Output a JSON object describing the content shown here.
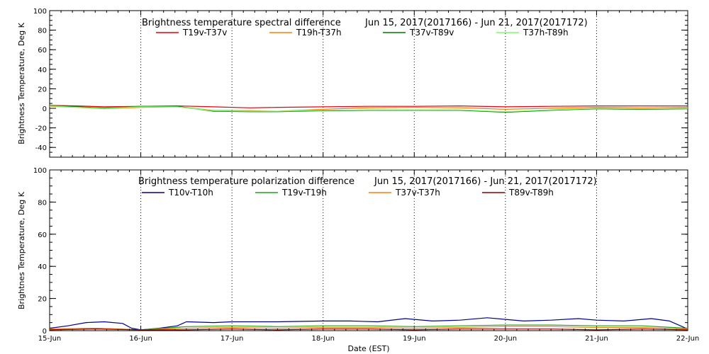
{
  "chart_data": [
    {
      "type": "line",
      "title": "Brightness temperature spectral difference",
      "date_range": "Jun 15, 2017(2017166) - Jun 21, 2017(2017172)",
      "ylabel": "Brightness Temperature, Deg K",
      "xlabel": "",
      "xlim": [
        0,
        7
      ],
      "ylim": [
        -50,
        100
      ],
      "yticks": [
        -40,
        -20,
        0,
        20,
        40,
        60,
        80,
        100
      ],
      "xtick_labels": [],
      "grid": "vertical dotted at day boundaries",
      "series": [
        {
          "name": "T19v-T37v",
          "color": "#e8000b",
          "x": [
            0,
            0.3,
            0.6,
            1.0,
            1.4,
            1.8,
            2.2,
            2.5,
            3.0,
            3.5,
            4.0,
            4.5,
            5.0,
            5.5,
            6.0,
            6.5,
            7.0
          ],
          "values": [
            3,
            2.5,
            1.5,
            2,
            2.5,
            1.5,
            0.5,
            1,
            1.5,
            2,
            2,
            2.5,
            1.5,
            2,
            2.5,
            2.5,
            2.5
          ]
        },
        {
          "name": "T19h-T37h",
          "color": "#ff7f0e",
          "x": [
            0,
            0.3,
            0.6,
            1.0,
            1.4,
            1.8,
            2.2,
            2.5,
            3.0,
            3.5,
            4.0,
            4.5,
            5.0,
            5.5,
            6.0,
            6.5,
            7.0
          ],
          "values": [
            2,
            1,
            -0.5,
            1,
            1.5,
            -2,
            -2.5,
            -3,
            -1,
            0.5,
            1,
            0.5,
            -1,
            0,
            1,
            0.5,
            1
          ]
        },
        {
          "name": "T37v-T89v",
          "color": "#007a00",
          "x": [
            0,
            0.3,
            0.6,
            1.0,
            1.4,
            1.8,
            2.2,
            2.5,
            3.0,
            3.5,
            4.0,
            4.5,
            5.0,
            5.5,
            6.0,
            6.5,
            7.0
          ],
          "values": [
            3,
            1.5,
            0.5,
            2,
            2,
            -3,
            -3.5,
            -3.5,
            -2.5,
            -2,
            -2,
            -2,
            -4,
            -2,
            -0.5,
            -1,
            -0.5
          ]
        },
        {
          "name": "T37h-T89h",
          "color": "#7cfc6c",
          "x": [
            0,
            0.3,
            0.6,
            1.0,
            1.4,
            1.8,
            2.2,
            2.5,
            3.0,
            3.5,
            4.0,
            4.5,
            5.0,
            5.5,
            6.0,
            6.5,
            7.0
          ],
          "values": [
            2.5,
            1,
            0,
            1.5,
            1.5,
            -2.5,
            -3,
            -3,
            -2,
            -1.5,
            -1.5,
            -1.5,
            -3.5,
            -1.5,
            0,
            -0.5,
            0
          ]
        }
      ]
    },
    {
      "type": "line",
      "title": "Brightness temperature polarization difference",
      "date_range": "Jun 15, 2017(2017166) - Jun 21, 2017(2017172)",
      "ylabel": "Brightnes Temperature, Deg K",
      "xlabel": "Date (EST)",
      "xlim": [
        0,
        7
      ],
      "ylim": [
        0,
        100
      ],
      "yticks": [
        0,
        20,
        40,
        60,
        80,
        100
      ],
      "xtick_labels": [
        "15-Jun",
        "16-Jun",
        "17-Jun",
        "18-Jun",
        "19-Jun",
        "20-Jun",
        "21-Jun",
        "22-Jun"
      ],
      "grid": "vertical dotted at day boundaries",
      "series": [
        {
          "name": "T10v-T10h",
          "color": "#00008b",
          "x": [
            0,
            0.2,
            0.4,
            0.6,
            0.8,
            0.9,
            1.0,
            1.2,
            1.4,
            1.5,
            1.8,
            2.0,
            2.5,
            3.0,
            3.3,
            3.6,
            3.9,
            4.2,
            4.5,
            4.8,
            5.0,
            5.2,
            5.5,
            5.8,
            6.0,
            6.3,
            6.6,
            6.8,
            7.0
          ],
          "values": [
            1.5,
            3,
            5,
            5.5,
            4.5,
            1.5,
            0.5,
            1.5,
            3,
            5.5,
            5,
            5.5,
            5.5,
            6,
            6,
            5.5,
            7.5,
            6,
            6.5,
            8,
            7,
            6,
            6.5,
            7.5,
            6.5,
            6,
            7.5,
            6,
            1
          ]
        },
        {
          "name": "T19v-T19h",
          "color": "#1fa020",
          "x": [
            0,
            0.5,
            1.0,
            1.5,
            2.0,
            2.5,
            3.0,
            3.5,
            4.0,
            4.5,
            5.0,
            5.5,
            6.0,
            6.5,
            7.0
          ],
          "values": [
            1,
            1.5,
            0.5,
            2.5,
            3,
            2.5,
            3,
            3,
            2.5,
            3,
            3.5,
            3.5,
            3,
            3,
            1.5
          ]
        },
        {
          "name": "T37v-T37h",
          "color": "#ff7f0e",
          "x": [
            0,
            0.5,
            1.0,
            1.5,
            2.0,
            2.5,
            3.0,
            3.5,
            4.0,
            4.5,
            5.0,
            5.5,
            6.0,
            6.5,
            7.0
          ],
          "values": [
            1,
            1.5,
            0.5,
            1.5,
            2,
            1.5,
            2,
            2,
            1.5,
            2,
            2.5,
            2.5,
            2,
            2,
            1
          ]
        },
        {
          "name": "T89v-T89h",
          "color": "#8b0000",
          "x": [
            0,
            0.5,
            1.0,
            1.5,
            2.0,
            2.5,
            3.0,
            3.5,
            4.0,
            4.5,
            5.0,
            5.5,
            6.0,
            6.5,
            7.0
          ],
          "values": [
            0.5,
            1,
            0.5,
            0.5,
            1,
            0.5,
            1,
            1,
            0.5,
            1,
            1,
            1,
            0.5,
            1,
            0.5
          ]
        }
      ]
    }
  ]
}
